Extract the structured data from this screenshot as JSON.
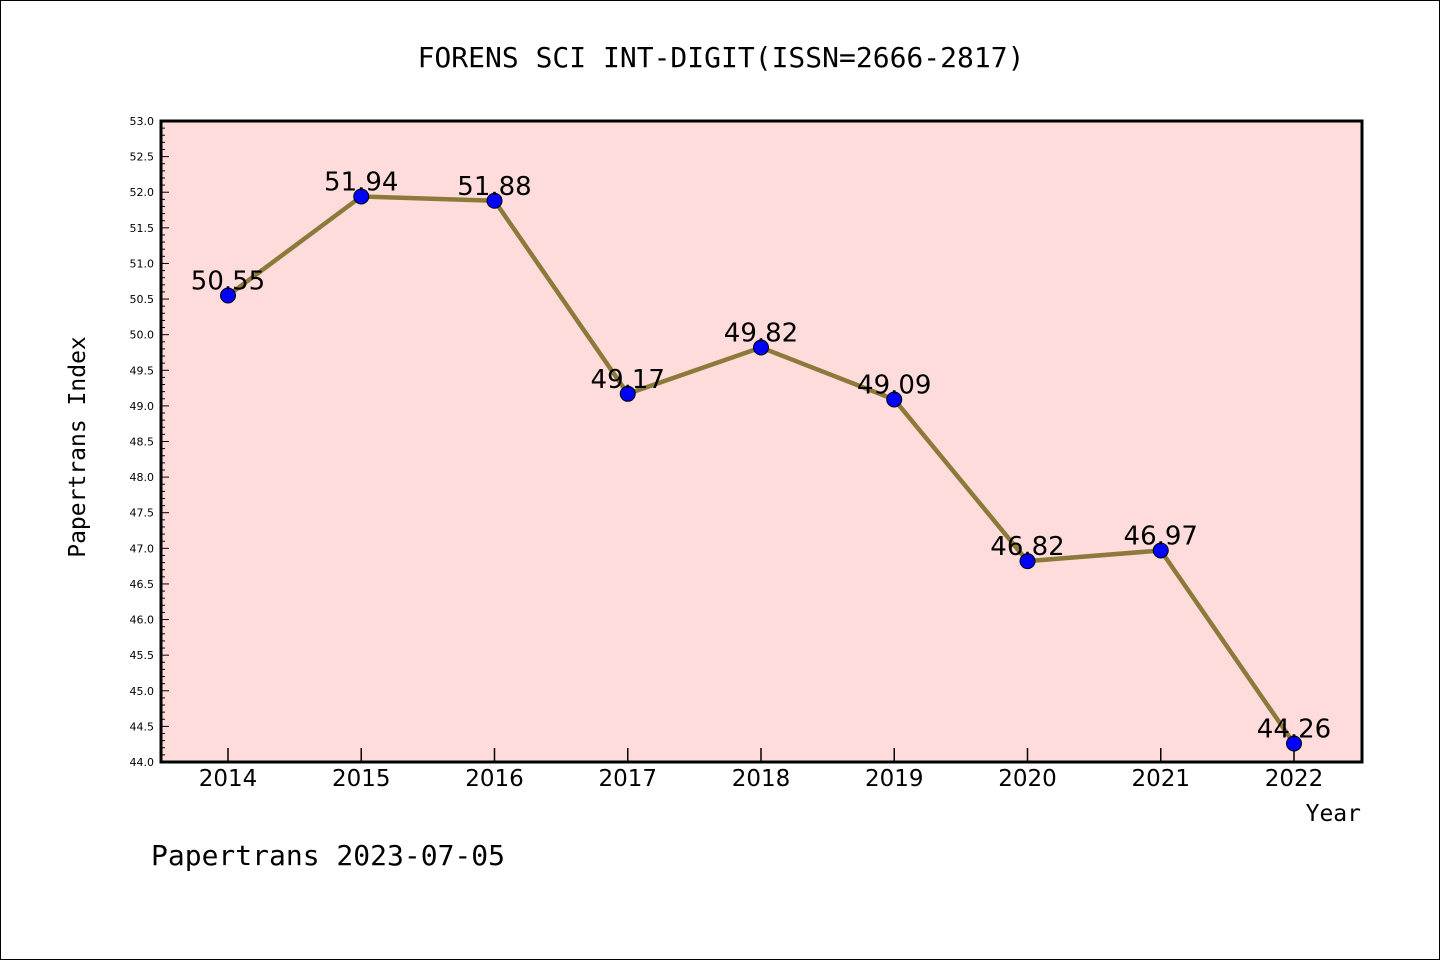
{
  "chart_data": {
    "type": "line",
    "title": "FORENS SCI INT-DIGIT(ISSN=2666-2817)",
    "xlabel": "Year",
    "ylabel": "Papertrans Index",
    "categories": [
      "2014",
      "2015",
      "2016",
      "2017",
      "2018",
      "2019",
      "2020",
      "2021",
      "2022"
    ],
    "series": [
      {
        "values": [
          50.55,
          51.94,
          51.88,
          49.17,
          49.82,
          49.09,
          46.82,
          46.97,
          44.26
        ],
        "line_color": "#8b7a3a",
        "marker_color": "#0000ff"
      }
    ],
    "data_labels": [
      "50.55",
      "51.94",
      "51.88",
      "49.17",
      "49.82",
      "49.09",
      "46.82",
      "46.97",
      "44.26"
    ],
    "ylim": [
      44.0,
      53.0
    ],
    "y_ticks": [
      "44.0",
      "44.5",
      "45.0",
      "45.5",
      "46.0",
      "46.5",
      "47.0",
      "47.5",
      "48.0",
      "48.5",
      "49.0",
      "49.5",
      "50.0",
      "50.5",
      "51.0",
      "51.5",
      "52.0",
      "52.5",
      "53.0"
    ],
    "plot_background": "#ffdcdc",
    "grid": false,
    "legend": "none"
  },
  "footer": {
    "text": "Papertrans 2023-07-05"
  }
}
